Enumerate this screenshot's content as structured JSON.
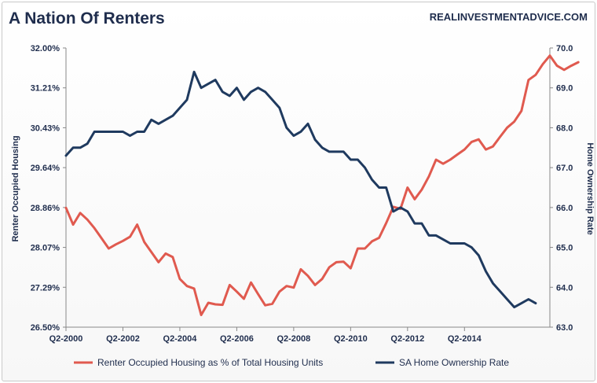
{
  "chart_data": {
    "type": "line",
    "title": "A Nation Of Renters",
    "source": "REALINVESTMENTADVICE.COM",
    "x_tick_labels": [
      "Q2-2000",
      "Q2-2002",
      "Q2-2004",
      "Q2-2006",
      "Q2-2008",
      "Q2-2010",
      "Q2-2012",
      "Q2-2014"
    ],
    "y_left": {
      "label": "Renter Occupied  Housing",
      "range": [
        26.5,
        32.0
      ],
      "tick_labels": [
        "32.00%",
        "31.21%",
        "30.43%",
        "29.64%",
        "28.86%",
        "28.07%",
        "27.29%",
        "26.50%"
      ]
    },
    "y_right": {
      "label": "Home Ownership Rate",
      "range": [
        63.0,
        70.0
      ],
      "tick_labels": [
        "70.0",
        "69.0",
        "68.0",
        "67.0",
        "66.0",
        "65.0",
        "64.0",
        "63.0"
      ]
    },
    "series": [
      {
        "name": "Renter Occupied Housing as % of Total Housing Units",
        "axis": "left",
        "color": "#e05a4f",
        "start_period": "Q2-2000",
        "values": [
          28.85,
          28.52,
          28.75,
          28.62,
          28.45,
          28.25,
          28.05,
          28.13,
          28.2,
          28.28,
          28.52,
          28.18,
          27.98,
          27.78,
          27.95,
          27.88,
          27.45,
          27.31,
          27.26,
          26.74,
          26.98,
          26.95,
          26.94,
          27.33,
          27.2,
          27.06,
          27.38,
          27.15,
          26.93,
          26.96,
          27.2,
          27.31,
          27.28,
          27.64,
          27.51,
          27.33,
          27.45,
          27.68,
          27.78,
          27.79,
          27.66,
          28.05,
          28.05,
          28.19,
          28.26,
          28.55,
          28.87,
          28.83,
          29.25,
          29.02,
          29.21,
          29.47,
          29.8,
          29.72,
          29.8,
          29.9,
          30.0,
          30.15,
          30.2,
          30.0,
          30.06,
          30.25,
          30.43,
          30.55,
          30.76,
          31.37,
          31.47,
          31.68,
          31.85,
          31.65,
          31.57,
          31.65,
          31.72
        ]
      },
      {
        "name": "SA Home Ownership Rate",
        "axis": "right",
        "color": "#1f3a5f",
        "start_period": "Q2-2000",
        "values": [
          67.3,
          67.5,
          67.5,
          67.6,
          67.9,
          67.9,
          67.9,
          67.9,
          67.9,
          67.8,
          67.9,
          67.9,
          68.2,
          68.1,
          68.2,
          68.3,
          68.5,
          68.7,
          69.4,
          69.0,
          69.1,
          69.2,
          68.9,
          68.8,
          69.0,
          68.7,
          68.9,
          69.0,
          68.9,
          68.7,
          68.5,
          68.0,
          67.8,
          67.9,
          68.1,
          67.7,
          67.5,
          67.4,
          67.4,
          67.4,
          67.2,
          67.2,
          67.0,
          66.7,
          66.5,
          66.5,
          65.9,
          66.0,
          65.9,
          65.6,
          65.6,
          65.3,
          65.3,
          65.2,
          65.1,
          65.1,
          65.1,
          65.0,
          64.8,
          64.4,
          64.1,
          63.9,
          63.7,
          63.5,
          63.6,
          63.7,
          63.6
        ]
      }
    ],
    "grid": false,
    "legend_position": "bottom"
  }
}
